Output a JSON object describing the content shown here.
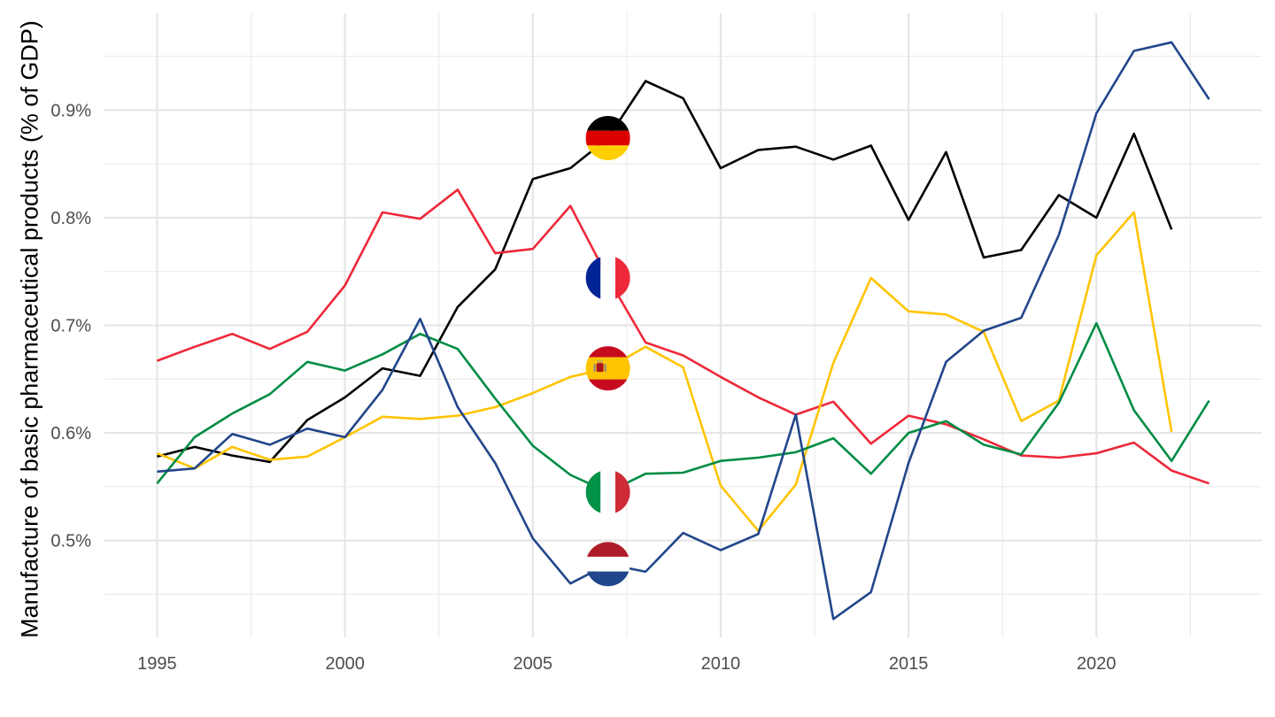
{
  "chart_data": {
    "type": "line",
    "ylabel": "Manufacture of basic pharmaceutical products (% of GDP)",
    "xlabel": "",
    "x_ticks": [
      1995,
      2000,
      2005,
      2010,
      2015,
      2020
    ],
    "y_ticks": [
      0.5,
      0.6,
      0.7,
      0.8,
      0.9
    ],
    "y_tick_labels": [
      "0.5%",
      "0.6%",
      "0.7%",
      "0.8%",
      "0.9%"
    ],
    "xlim": [
      1993.6,
      2024.4
    ],
    "ylim": [
      0.41,
      0.99
    ],
    "grid": true,
    "legend": "flag markers placed at 2007",
    "series": [
      {
        "country": "Germany",
        "color": "#000000",
        "flag": "germany-flag",
        "x": [
          1995,
          1996,
          1997,
          1998,
          1999,
          2000,
          2001,
          2002,
          2003,
          2004,
          2005,
          2006,
          2007,
          2008,
          2009,
          2010,
          2011,
          2012,
          2013,
          2014,
          2015,
          2016,
          2017,
          2018,
          2019,
          2020,
          2021,
          2022
        ],
        "y": [
          0.578,
          0.587,
          0.579,
          0.573,
          0.612,
          0.633,
          0.66,
          0.653,
          0.717,
          0.752,
          0.836,
          0.846,
          0.874,
          0.927,
          0.911,
          0.846,
          0.863,
          0.866,
          0.854,
          0.867,
          0.798,
          0.861,
          0.763,
          0.77,
          0.821,
          0.8,
          0.878,
          0.789
        ]
      },
      {
        "country": "France",
        "color": "#ED2939",
        "flag": "france-flag",
        "x": [
          1995,
          1996,
          1997,
          1998,
          1999,
          2000,
          2001,
          2002,
          2003,
          2004,
          2005,
          2006,
          2007,
          2008,
          2009,
          2010,
          2011,
          2012,
          2013,
          2014,
          2015,
          2016,
          2017,
          2018,
          2019,
          2020,
          2021,
          2022,
          2023
        ],
        "y": [
          0.667,
          0.68,
          0.692,
          0.678,
          0.694,
          0.737,
          0.805,
          0.799,
          0.826,
          0.767,
          0.771,
          0.811,
          0.744,
          0.684,
          0.672,
          0.652,
          0.633,
          0.617,
          0.629,
          0.59,
          0.616,
          0.608,
          0.594,
          0.579,
          0.577,
          0.581,
          0.591,
          0.565,
          0.553
        ]
      },
      {
        "country": "Spain",
        "color": "#FFC400",
        "flag": "spain-flag",
        "x": [
          1995,
          1996,
          1997,
          1998,
          1999,
          2000,
          2001,
          2002,
          2003,
          2004,
          2005,
          2006,
          2007,
          2008,
          2009,
          2010,
          2011,
          2012,
          2013,
          2014,
          2015,
          2016,
          2017,
          2018,
          2019,
          2020,
          2021,
          2022
        ],
        "y": [
          0.581,
          0.567,
          0.587,
          0.575,
          0.578,
          0.596,
          0.615,
          0.613,
          0.616,
          0.624,
          0.637,
          0.652,
          0.66,
          0.68,
          0.661,
          0.551,
          0.509,
          0.552,
          0.665,
          0.744,
          0.713,
          0.71,
          0.694,
          0.611,
          0.63,
          0.765,
          0.805,
          0.601
        ]
      },
      {
        "country": "Italy",
        "color": "#008C45",
        "flag": "italy-flag",
        "x": [
          1995,
          1996,
          1997,
          1998,
          1999,
          2000,
          2001,
          2002,
          2003,
          2004,
          2005,
          2006,
          2007,
          2008,
          2009,
          2010,
          2011,
          2012,
          2013,
          2014,
          2015,
          2016,
          2017,
          2018,
          2019,
          2020,
          2021,
          2022,
          2023
        ],
        "y": [
          0.553,
          0.596,
          0.618,
          0.636,
          0.666,
          0.658,
          0.673,
          0.692,
          0.678,
          0.632,
          0.588,
          0.561,
          0.545,
          0.562,
          0.563,
          0.574,
          0.577,
          0.582,
          0.595,
          0.562,
          0.6,
          0.611,
          0.589,
          0.58,
          0.628,
          0.702,
          0.621,
          0.574,
          0.63
        ]
      },
      {
        "country": "Netherlands",
        "color": "#21468B",
        "flag": "netherlands-flag",
        "x": [
          1995,
          1996,
          1997,
          1998,
          1999,
          2000,
          2001,
          2002,
          2003,
          2004,
          2005,
          2006,
          2007,
          2008,
          2009,
          2010,
          2011,
          2012,
          2013,
          2014,
          2015,
          2016,
          2017,
          2018,
          2019,
          2020,
          2021,
          2022,
          2023
        ],
        "y": [
          0.564,
          0.567,
          0.599,
          0.589,
          0.604,
          0.596,
          0.64,
          0.706,
          0.624,
          0.572,
          0.502,
          0.46,
          0.478,
          0.471,
          0.507,
          0.491,
          0.506,
          0.617,
          0.427,
          0.452,
          0.572,
          0.666,
          0.695,
          0.707,
          0.784,
          0.897,
          0.955,
          0.963,
          0.91
        ]
      }
    ]
  }
}
